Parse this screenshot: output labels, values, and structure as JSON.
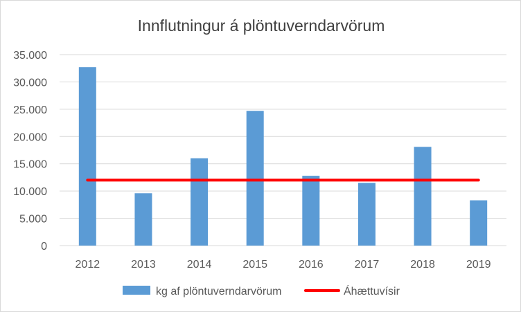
{
  "chart_data": {
    "type": "bar",
    "title": "Innflutningur á plöntuverndarvörum",
    "categories": [
      "2012",
      "2013",
      "2014",
      "2015",
      "2016",
      "2017",
      "2018",
      "2019"
    ],
    "series": [
      {
        "name": "kg af plöntuverndarvörum",
        "type": "bar",
        "color": "#5b9bd5",
        "values": [
          32700,
          9600,
          16000,
          24700,
          12800,
          11500,
          18100,
          8300
        ]
      },
      {
        "name": "Áhættuvísir",
        "type": "line",
        "color": "#ff0000",
        "values": [
          12000,
          12000,
          12000,
          12000,
          12000,
          12000,
          12000,
          12000
        ]
      }
    ],
    "ylim": [
      0,
      35000
    ],
    "yticks": [
      "0",
      "5.000",
      "10.000",
      "15.000",
      "20.000",
      "25.000",
      "30.000",
      "35.000"
    ],
    "grid": true,
    "legend": "bottom"
  }
}
